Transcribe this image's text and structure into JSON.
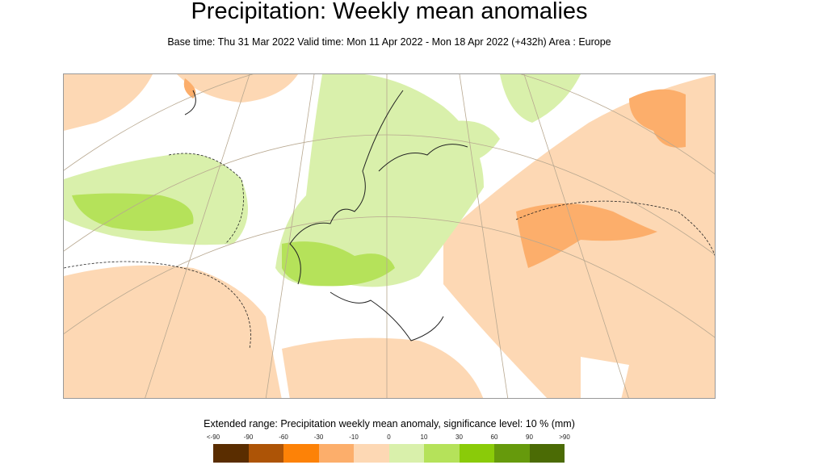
{
  "title": "Precipitation: Weekly mean anomalies",
  "subtitle": "Base time: Thu 31 Mar 2022 Valid time: Mon 11 Apr 2022 - Mon 18 Apr 2022 (+432h) Area : Europe",
  "legend": {
    "title": "Extended range: Precipitation weekly mean anomaly, significance level: 10 % (mm)",
    "labels": [
      "<-90",
      "-90",
      "-60",
      "-30",
      "-10",
      "0",
      "10",
      "30",
      "60",
      "90",
      ">90"
    ],
    "colors": [
      "#5a2d00",
      "#ad5406",
      "#fd8207",
      "#fcae6b",
      "#fdd8b4",
      "#d9f0ab",
      "#b5e25a",
      "#8acb09",
      "#669a0c",
      "#4b6b05"
    ]
  },
  "map": {
    "area": "Europe",
    "dry_color": "#fdd8b4",
    "dry_strong_color": "#fcae6b",
    "wet_color": "#d9f0ab",
    "wet_strong_color": "#b5e25a"
  }
}
